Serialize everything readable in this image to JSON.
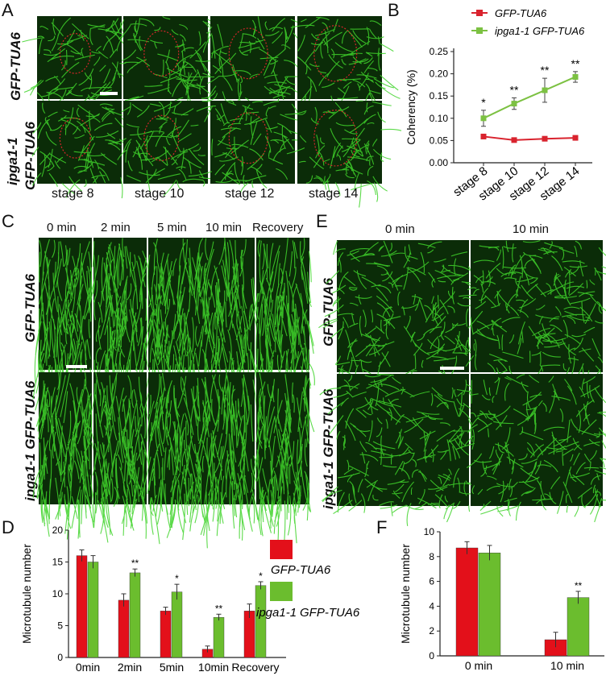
{
  "panels": {
    "A": "A",
    "B": "B",
    "C": "C",
    "D": "D",
    "E": "E",
    "F": "F"
  },
  "panelA": {
    "row_labels": [
      "GFP-TUA6",
      "ipga1-1",
      "GFP-TUA6"
    ],
    "col_labels": [
      "stage 8",
      "stage 10",
      "stage 12",
      "stage 14"
    ]
  },
  "panelC": {
    "col_labels": [
      "0 min",
      "2 min",
      "5 min",
      "10 min",
      "Recovery"
    ],
    "row_labels": [
      "GFP-TUA6",
      "ipga1-1 GFP-TUA6"
    ]
  },
  "panelE": {
    "col_labels": [
      "0 min",
      "10 min"
    ],
    "row_labels": [
      "GFP-TUA6",
      "ipga1-1 GFP-TUA6"
    ]
  },
  "colors": {
    "red": "#e3101a",
    "green": "#6bbd2e",
    "line_red": "#d9232e",
    "line_green": "#7cc142",
    "micro_bg": "#0b2c08",
    "micro_fg": "#3fd42a"
  },
  "chart_data": [
    {
      "panel": "B",
      "type": "line",
      "x": [
        "stage 8",
        "stage 10",
        "stage 12",
        "stage 14"
      ],
      "ylabel": "Coherency (%)",
      "ylim": [
        0.0,
        0.25
      ],
      "yticks": [
        "0.00",
        "0.05",
        "0.10",
        "0.15",
        "0.20",
        "0.25"
      ],
      "series": [
        {
          "name": "GFP-TUA6",
          "values": [
            0.059,
            0.051,
            0.054,
            0.056
          ],
          "errors": [
            0.005,
            0.004,
            0.004,
            0.003
          ]
        },
        {
          "name": "ipga1-1 GFP-TUA6",
          "values": [
            0.1,
            0.133,
            0.163,
            0.193
          ],
          "errors": [
            0.018,
            0.013,
            0.027,
            0.012
          ]
        }
      ],
      "significance": [
        "*",
        "**",
        "**",
        "**"
      ],
      "legend": "top"
    },
    {
      "panel": "D",
      "type": "bar",
      "categories": [
        "0min",
        "2min",
        "5min",
        "10min",
        "Recovery"
      ],
      "ylabel": "Microtubule number",
      "ylim": [
        0,
        20
      ],
      "yticks": [
        "0",
        "5",
        "10",
        "15",
        "20"
      ],
      "series": [
        {
          "name": "GFP-TUA6",
          "values": [
            16.0,
            9.0,
            7.3,
            1.3,
            7.3
          ],
          "errors": [
            0.9,
            1.0,
            0.6,
            0.5,
            1.1
          ]
        },
        {
          "name": "ipga1-1GFP-TUA6",
          "values": [
            15.0,
            13.3,
            10.3,
            6.3,
            11.3
          ],
          "errors": [
            1.0,
            0.6,
            1.2,
            0.5,
            0.6
          ]
        }
      ],
      "significance": [
        "",
        "**",
        "*",
        "**",
        "*"
      ],
      "legend_names": [
        "GFP-TUA6",
        "ipga1-1",
        "GFP-TUA6"
      ],
      "legend": "right"
    },
    {
      "panel": "F",
      "type": "bar",
      "categories": [
        "0 min",
        "10 min"
      ],
      "ylabel": "Microtubule number",
      "ylim": [
        0,
        10
      ],
      "yticks": [
        "0",
        "2",
        "4",
        "6",
        "8",
        "10"
      ],
      "series": [
        {
          "values": [
            8.7,
            1.3
          ],
          "errors": [
            0.5,
            0.6
          ]
        },
        {
          "values": [
            8.3,
            4.7
          ],
          "errors": [
            0.6,
            0.5
          ]
        }
      ],
      "significance": [
        "",
        "**"
      ]
    }
  ]
}
